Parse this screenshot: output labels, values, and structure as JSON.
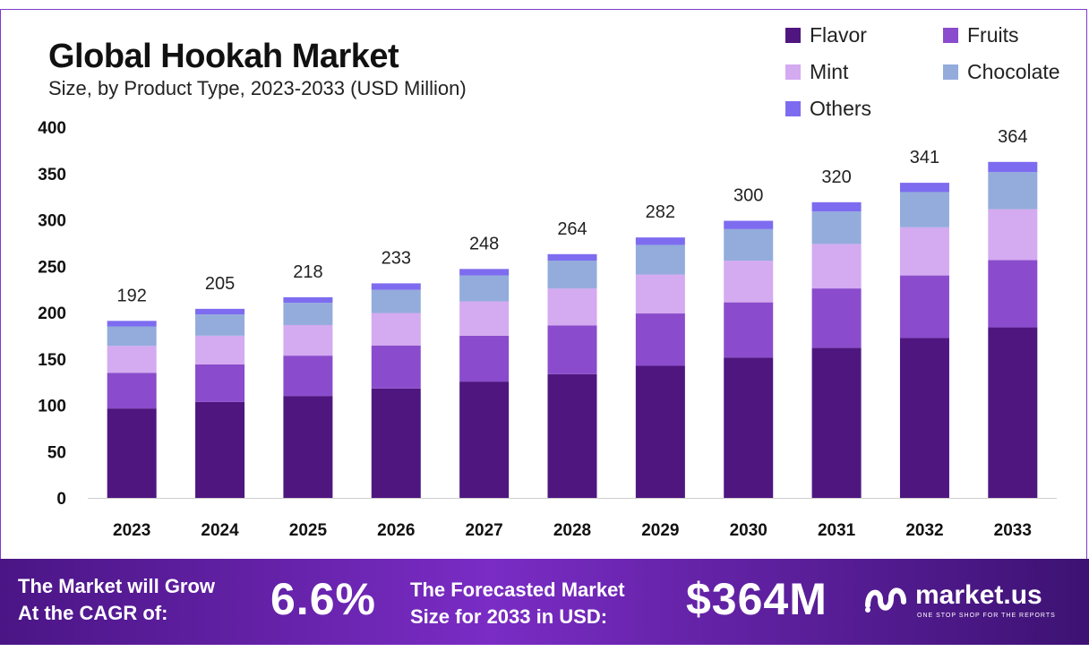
{
  "header": {
    "title": "Global Hookah Market",
    "subtitle": "Size, by Product Type, 2023-2033 (USD Million)"
  },
  "legend": {
    "items": [
      {
        "label": "Flavor",
        "color": "#4f1680"
      },
      {
        "label": "Fruits",
        "color": "#8a4ccc"
      },
      {
        "label": "Mint",
        "color": "#d4aaf0"
      },
      {
        "label": "Chocolate",
        "color": "#93acdb"
      },
      {
        "label": "Others",
        "color": "#7d6cf0"
      }
    ]
  },
  "chart_data": {
    "type": "bar",
    "stacked": true,
    "categories": [
      "2023",
      "2024",
      "2025",
      "2026",
      "2027",
      "2028",
      "2029",
      "2030",
      "2031",
      "2032",
      "2033"
    ],
    "series": [
      {
        "name": "Flavor",
        "values": [
          96.5,
          103.5,
          110,
          118,
          125.5,
          133.5,
          142.5,
          151.5,
          162,
          172.5,
          184
        ]
      },
      {
        "name": "Fruits",
        "values": [
          38.5,
          40.5,
          43.5,
          46.5,
          49.5,
          52.5,
          56.5,
          59.5,
          64,
          67.5,
          72.5
        ]
      },
      {
        "name": "Mint",
        "values": [
          29,
          31,
          33,
          35,
          37,
          40,
          42,
          45,
          48,
          52,
          55
        ]
      },
      {
        "name": "Chocolate",
        "values": [
          21,
          23,
          24,
          25,
          28,
          30,
          32,
          34,
          35,
          38,
          40
        ]
      },
      {
        "name": "Others",
        "values": [
          6,
          6,
          6,
          7,
          7,
          7,
          8,
          9,
          10,
          10,
          11
        ]
      }
    ],
    "totals": [
      192,
      205,
      218,
      233,
      248,
      264,
      282,
      300,
      320,
      341,
      364
    ],
    "yticks": [
      0,
      50,
      100,
      150,
      200,
      250,
      300,
      350,
      400
    ],
    "ylim": [
      0,
      400
    ],
    "grid": false,
    "legend_position": "top-right"
  },
  "banner": {
    "cagr_line1": "The Market will Grow",
    "cagr_line2": "At the CAGR of:",
    "cagr_value": "6.6%",
    "forecast_line1": "The Forecasted Market",
    "forecast_line2": "Size for 2033 in USD:",
    "forecast_value": "$364M",
    "brand_name": "market.us",
    "brand_tagline": "ONE STOP SHOP FOR THE REPORTS"
  }
}
